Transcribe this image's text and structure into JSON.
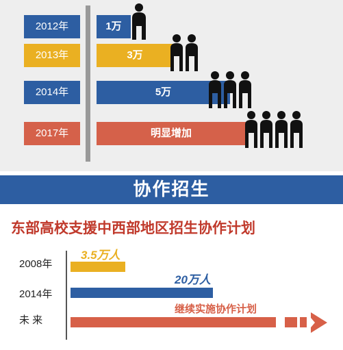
{
  "chart_data": [
    {
      "type": "bar",
      "categories": [
        "2012年",
        "2013年",
        "2014年",
        "2017年"
      ],
      "values": [
        1,
        3,
        5,
        null
      ],
      "value_labels": [
        "1万",
        "3万",
        "5万",
        "明显增加"
      ],
      "colors": [
        "#2d5ea2",
        "#eab022",
        "#2d5ea2",
        "#d5614a"
      ],
      "title": "",
      "xlabel": "",
      "ylabel": ""
    },
    {
      "type": "bar",
      "title": "东部高校支援中西部地区招生协作计划",
      "categories": [
        "2008年",
        "2014年",
        "未 来"
      ],
      "values": [
        3.5,
        20,
        null
      ],
      "value_labels": [
        "3.5万人",
        "20万人",
        "继续实施协作计划"
      ],
      "colors": [
        "#eab022",
        "#2d5ea2",
        "#d76048"
      ]
    }
  ],
  "banner": {
    "title": "协作招生"
  },
  "colors": {
    "blue": "#2d5ea2",
    "yellow": "#eab022",
    "red": "#d5614a",
    "background": "#eeeeee"
  },
  "icons": {
    "person": "person-icon",
    "arrow": "arrow-right-icon"
  }
}
